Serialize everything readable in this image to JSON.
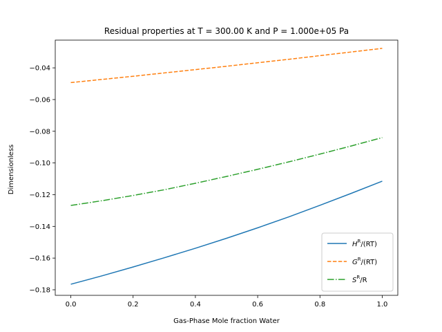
{
  "chart_data": {
    "type": "line",
    "title": "Residual properties at T = 300.00 K and P = 1.000e+05 Pa",
    "xlabel": "Gas-Phase Mole fraction Water",
    "ylabel": "Dimensionless",
    "xlim": [
      -0.05,
      1.05
    ],
    "ylim": [
      -0.1835,
      -0.0225
    ],
    "xticks": [
      0.0,
      0.2,
      0.4,
      0.6,
      0.8,
      1.0
    ],
    "xtick_labels": [
      "0.0",
      "0.2",
      "0.4",
      "0.6",
      "0.8",
      "1.0"
    ],
    "yticks": [
      -0.18,
      -0.16,
      -0.14,
      -0.12,
      -0.1,
      -0.08,
      -0.06,
      -0.04
    ],
    "ytick_labels": [
      "−0.18",
      "−0.16",
      "−0.14",
      "−0.12",
      "−0.10",
      "−0.08",
      "−0.06",
      "−0.04"
    ],
    "grid": false,
    "legend_position": "lower-right",
    "x": [
      0.0,
      0.1,
      0.2,
      0.3,
      0.4,
      0.5,
      0.6,
      0.7,
      0.8,
      0.9,
      1.0
    ],
    "series": [
      {
        "name": "HR/(RT)",
        "legend_main": "H",
        "legend_sup": "R",
        "legend_rest": "/(RT)",
        "color": "#1f77b4",
        "dash": "solid",
        "values": [
          -0.1765,
          -0.1712,
          -0.1656,
          -0.1598,
          -0.1538,
          -0.1475,
          -0.1409,
          -0.134,
          -0.1267,
          -0.1192,
          -0.1115
        ]
      },
      {
        "name": "GR/(RT)",
        "legend_main": "G",
        "legend_sup": "R",
        "legend_rest": "/(RT)",
        "color": "#ff7f0e",
        "dash": "dashed",
        "values": [
          -0.0493,
          -0.0473,
          -0.0453,
          -0.0432,
          -0.0411,
          -0.039,
          -0.0368,
          -0.0346,
          -0.0323,
          -0.03,
          -0.0277
        ]
      },
      {
        "name": "SR/R",
        "legend_main": "S",
        "legend_sup": "R",
        "legend_rest": "/R",
        "color": "#2ca02c",
        "dash": "dashdot",
        "values": [
          -0.1268,
          -0.1238,
          -0.1205,
          -0.1169,
          -0.1128,
          -0.1085,
          -0.104,
          -0.0993,
          -0.0944,
          -0.0893,
          -0.084
        ]
      }
    ]
  }
}
